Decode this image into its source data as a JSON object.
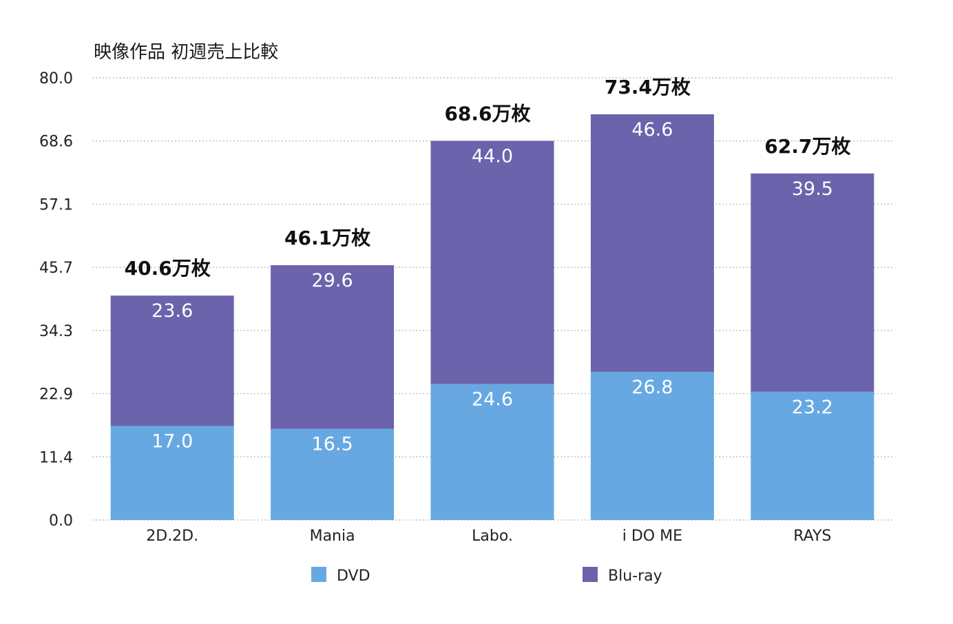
{
  "chart_data": {
    "type": "bar",
    "stacked": true,
    "title": "映像作品 初週売上比較",
    "categories": [
      "2D.2D.",
      "Mania",
      "Labo.",
      "i DO ME",
      "RAYS"
    ],
    "series": [
      {
        "name": "DVD",
        "color": "#67a8e2",
        "values": [
          17.0,
          16.5,
          24.6,
          26.8,
          23.2
        ]
      },
      {
        "name": "Blu-ray",
        "color": "#6b63ac",
        "values": [
          23.6,
          29.6,
          44.0,
          46.6,
          39.5
        ]
      }
    ],
    "totals": [
      "40.6万枚",
      "46.1万枚",
      "68.6万枚",
      "73.4万枚",
      "62.7万枚"
    ],
    "segment_labels": {
      "DVD": [
        "17.0",
        "16.5",
        "24.6",
        "26.8",
        "23.2"
      ],
      "Blu-ray": [
        "23.6",
        "29.6",
        "44.0",
        "46.6",
        "39.5"
      ]
    },
    "yticks": [
      "0.0",
      "11.4",
      "22.9",
      "34.3",
      "45.7",
      "57.1",
      "68.6",
      "80.0"
    ],
    "ylim": [
      0,
      80
    ],
    "grid": true,
    "grid_style": "dotted",
    "legend_position": "bottom"
  }
}
